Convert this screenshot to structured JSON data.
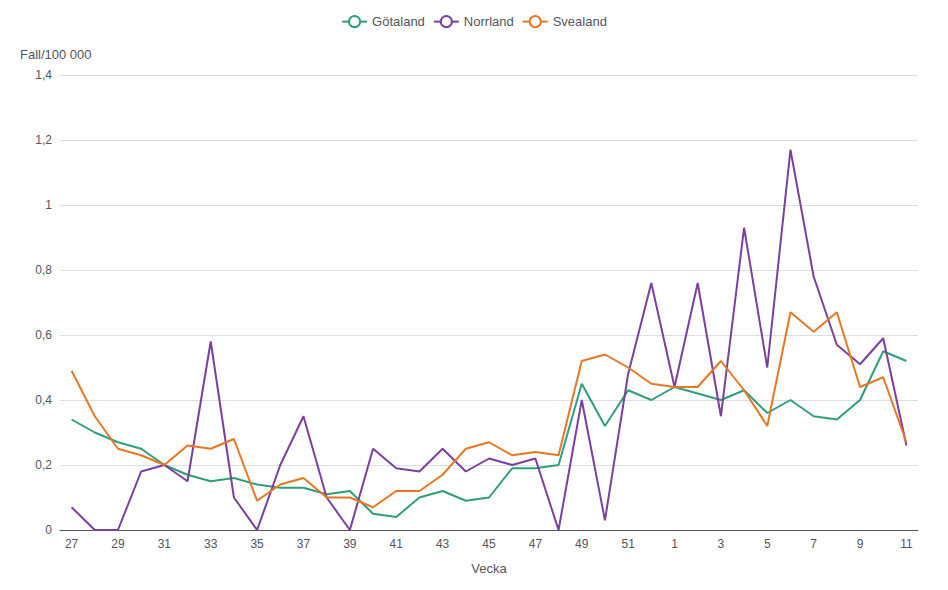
{
  "chart_data": {
    "type": "line",
    "xlabel": "Vecka",
    "ylabel": "Fall/100 000",
    "categories": [
      "27",
      null,
      "29",
      null,
      "31",
      null,
      "33",
      null,
      "35",
      null,
      "37",
      null,
      "39",
      null,
      "41",
      null,
      "43",
      null,
      "45",
      null,
      "47",
      null,
      "49",
      null,
      "51",
      null,
      "1",
      null,
      "3",
      null,
      "5",
      null,
      "7",
      null,
      "9",
      null,
      "11"
    ],
    "series": [
      {
        "name": "Götaland",
        "color": "#2E9E7E",
        "values": [
          0.34,
          0.3,
          0.27,
          0.25,
          0.2,
          0.17,
          0.15,
          0.16,
          0.14,
          0.13,
          0.13,
          0.11,
          0.12,
          0.05,
          0.04,
          0.1,
          0.12,
          0.09,
          0.1,
          0.19,
          0.19,
          0.2,
          0.45,
          0.32,
          0.43,
          0.4,
          0.44,
          0.42,
          0.4,
          0.43,
          0.36,
          0.4,
          0.35,
          0.34,
          0.4,
          0.55,
          0.52
        ]
      },
      {
        "name": "Norrland",
        "color": "#7B3FA0",
        "values": [
          0.07,
          0.0,
          0.0,
          0.18,
          0.2,
          0.15,
          0.58,
          0.1,
          0.0,
          0.2,
          0.35,
          0.1,
          0.0,
          0.25,
          0.19,
          0.18,
          0.25,
          0.18,
          0.22,
          0.2,
          0.22,
          0.0,
          0.4,
          0.03,
          0.48,
          0.76,
          0.44,
          0.76,
          0.35,
          0.93,
          0.5,
          1.17,
          0.78,
          0.57,
          0.51,
          0.59,
          0.26
        ]
      },
      {
        "name": "Svealand",
        "color": "#E87722",
        "values": [
          0.49,
          0.35,
          0.25,
          0.23,
          0.2,
          0.26,
          0.25,
          0.28,
          0.09,
          0.14,
          0.16,
          0.1,
          0.1,
          0.07,
          0.12,
          0.12,
          0.17,
          0.25,
          0.27,
          0.23,
          0.24,
          0.23,
          0.52,
          0.54,
          0.5,
          0.45,
          0.44,
          0.44,
          0.52,
          0.43,
          0.32,
          0.67,
          0.61,
          0.67,
          0.44,
          0.47,
          0.27
        ]
      }
    ],
    "ylim": [
      0,
      1.4
    ],
    "yticks": [
      0,
      {
        "value": 0.2,
        "label": "0,2"
      },
      {
        "value": 0.4,
        "label": "0,4"
      },
      {
        "value": 0.6,
        "label": "0,6"
      },
      {
        "value": 0.8,
        "label": "0,8"
      },
      1,
      {
        "value": 1.2,
        "label": "1,2"
      },
      {
        "value": 1.4,
        "label": "1,4"
      }
    ],
    "grid": true,
    "legend": "top"
  }
}
